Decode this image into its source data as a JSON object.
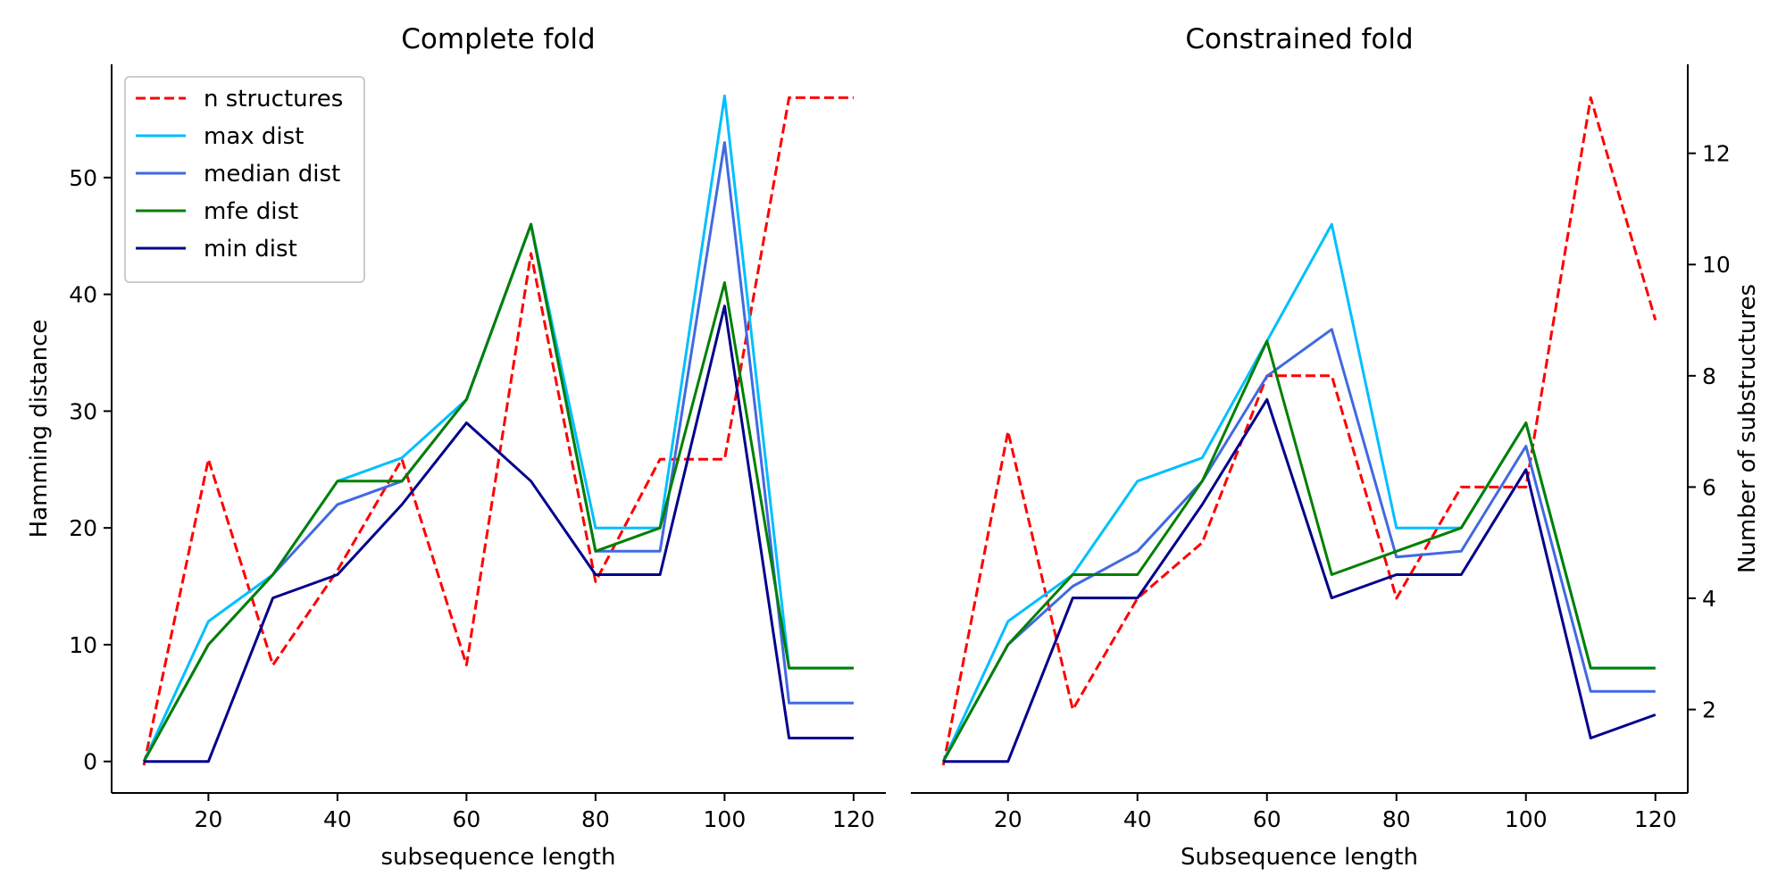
{
  "chart_data": [
    {
      "type": "line",
      "title": "Complete fold",
      "xlabel": "subsequence length",
      "ylabel": "Hamming distance",
      "xlim": [
        5,
        125
      ],
      "ylim": [
        -2.7,
        59.7
      ],
      "x_ticks": [
        20,
        40,
        60,
        80,
        100,
        120
      ],
      "y_ticks": [
        0,
        10,
        20,
        30,
        40,
        50
      ],
      "secondary_axis": {
        "ylim": [
          0.5,
          13.6
        ]
      },
      "x": [
        10,
        20,
        30,
        40,
        50,
        60,
        70,
        80,
        90,
        100,
        110,
        120
      ],
      "series": [
        {
          "name": "n structures",
          "axis": "right",
          "color": "#ff0000",
          "style": "dashed",
          "values": [
            1,
            6.5,
            2.8,
            4.5,
            6.5,
            2.8,
            10.2,
            4.3,
            6.5,
            6.5,
            13,
            13
          ]
        },
        {
          "name": "max dist",
          "axis": "left",
          "color": "#00bfff",
          "style": "solid",
          "values": [
            0,
            12,
            16,
            24,
            26,
            31,
            46,
            20,
            20,
            57,
            8,
            8
          ]
        },
        {
          "name": "median dist",
          "axis": "left",
          "color": "#4169e1",
          "style": "solid",
          "values": [
            0,
            10,
            16,
            22,
            24,
            31,
            46,
            18,
            18,
            53,
            5,
            5
          ]
        },
        {
          "name": "mfe dist",
          "axis": "left",
          "color": "#008000",
          "style": "solid",
          "values": [
            0,
            10,
            16,
            24,
            24,
            31,
            46,
            18,
            20,
            41,
            8,
            8
          ]
        },
        {
          "name": "min dist",
          "axis": "left",
          "color": "#00008b",
          "style": "solid",
          "values": [
            0,
            0,
            14,
            16,
            22,
            29,
            24,
            16,
            16,
            39,
            2,
            2
          ]
        }
      ],
      "legend": "upper-left"
    },
    {
      "type": "line",
      "title": "Constrained fold",
      "xlabel": "Subsequence length",
      "ylabel": "Number of substructures",
      "xlim": [
        5,
        125
      ],
      "ylim": [
        -2.7,
        59.7
      ],
      "x_ticks": [
        20,
        40,
        60,
        80,
        100,
        120
      ],
      "y_ticks_right": [
        2,
        4,
        6,
        8,
        10,
        12
      ],
      "secondary_axis": {
        "ylim": [
          0.5,
          13.6
        ]
      },
      "x": [
        10,
        20,
        30,
        40,
        50,
        60,
        70,
        80,
        90,
        100,
        110,
        120
      ],
      "series": [
        {
          "name": "n structures",
          "axis": "right",
          "color": "#ff0000",
          "style": "dashed",
          "values": [
            1,
            7,
            2,
            4,
            5,
            8,
            8,
            4,
            6,
            6,
            13,
            9
          ]
        },
        {
          "name": "max dist",
          "axis": "left",
          "color": "#00bfff",
          "style": "solid",
          "values": [
            0,
            12,
            16,
            24,
            26,
            36,
            46,
            20,
            20,
            29,
            8,
            8
          ]
        },
        {
          "name": "median dist",
          "axis": "left",
          "color": "#4169e1",
          "style": "solid",
          "values": [
            0,
            10,
            15,
            18,
            24,
            33,
            37,
            17.5,
            18,
            27,
            6,
            6
          ]
        },
        {
          "name": "mfe dist",
          "axis": "left",
          "color": "#008000",
          "style": "solid",
          "values": [
            0,
            10,
            16,
            16,
            24,
            36,
            16,
            18,
            20,
            29,
            8,
            8
          ]
        },
        {
          "name": "min dist",
          "axis": "left",
          "color": "#00008b",
          "style": "solid",
          "values": [
            0,
            0,
            14,
            14,
            22,
            31,
            14,
            16,
            16,
            25,
            2,
            4
          ]
        }
      ]
    }
  ]
}
